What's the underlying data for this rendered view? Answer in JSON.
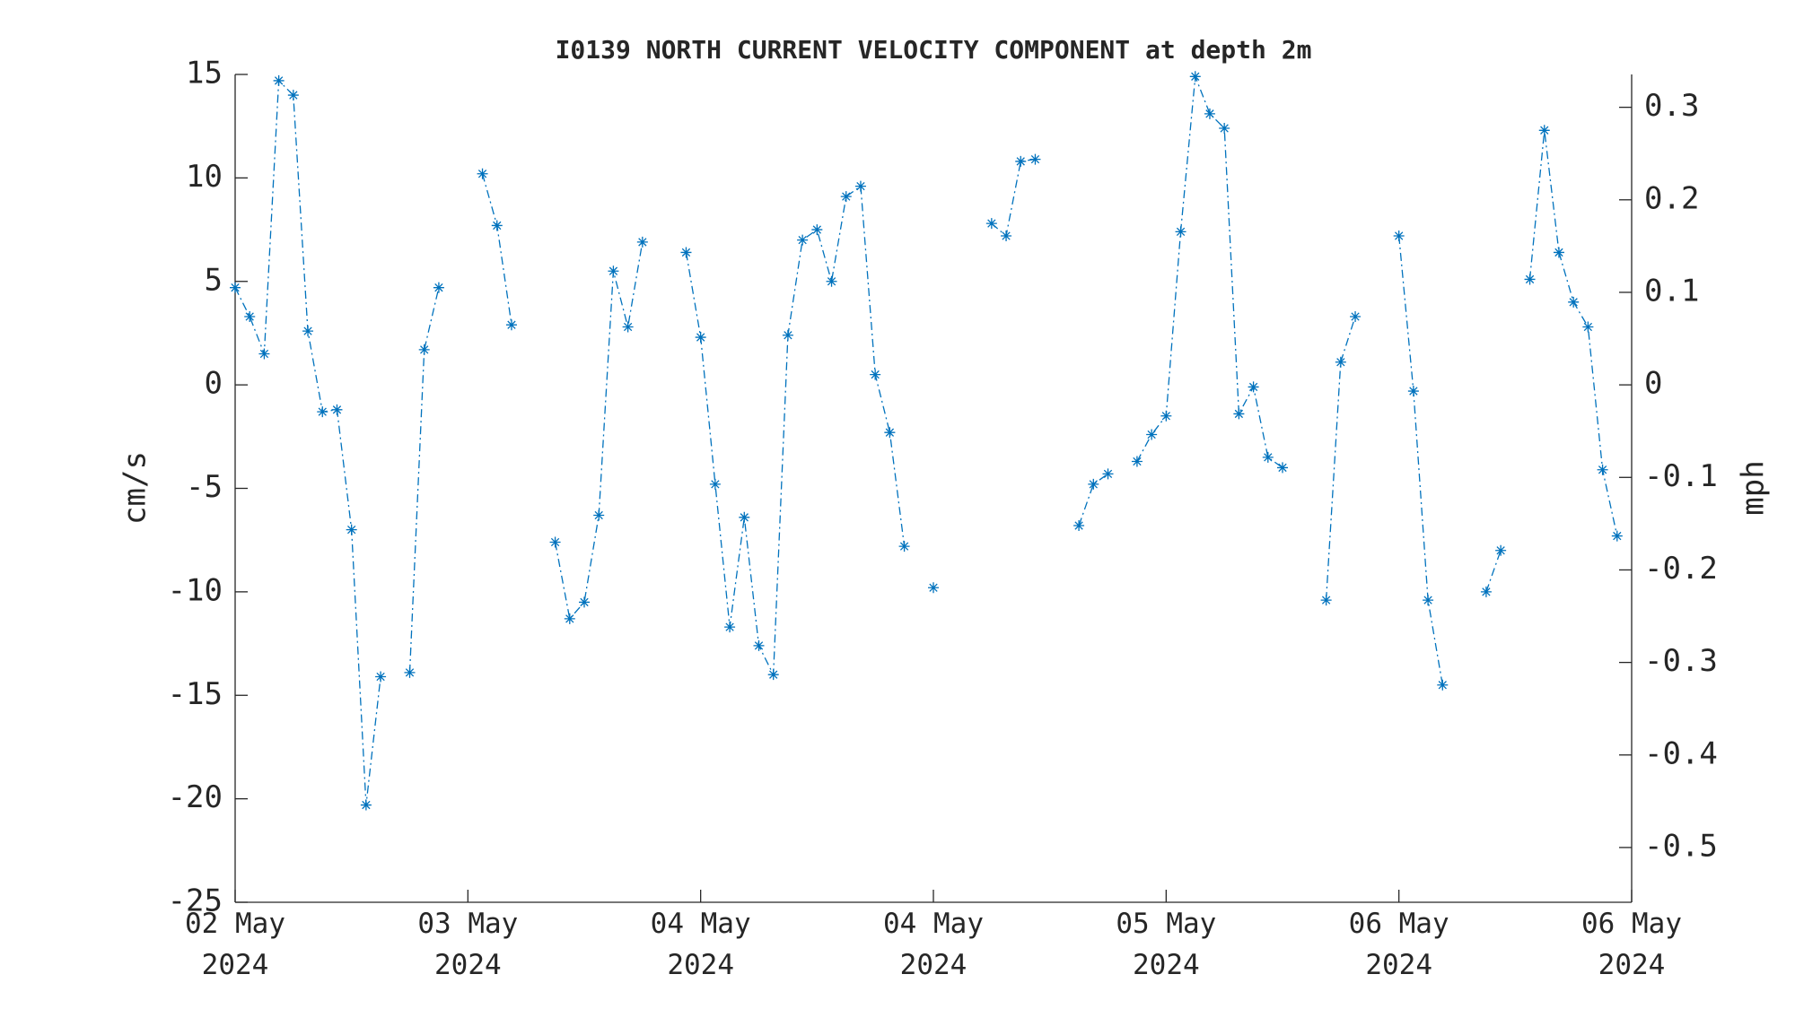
{
  "chart_data": {
    "type": "line",
    "title": "I0139 NORTH CURRENT VELOCITY COMPONENT at depth 2m",
    "y_label": "cm/s",
    "y2_label": "mph",
    "x": [
      0,
      1,
      2,
      3,
      4,
      5,
      6,
      7,
      8,
      9,
      10,
      11,
      12,
      13,
      14,
      15,
      16,
      17,
      18,
      19,
      20,
      21,
      22,
      23,
      24,
      25,
      26,
      27,
      28,
      29,
      30,
      31,
      32,
      33,
      34,
      35,
      36,
      37,
      38,
      39,
      40,
      41,
      42,
      43,
      44,
      45,
      46,
      47,
      48,
      49,
      50,
      51,
      52,
      53,
      54,
      55,
      56,
      57,
      58,
      59,
      60,
      61,
      62,
      63,
      64,
      65,
      66,
      67,
      68,
      69,
      70,
      71,
      72,
      73,
      74,
      75,
      76,
      77,
      78,
      79,
      80,
      81,
      82,
      83,
      84,
      85,
      86,
      87,
      88,
      89,
      90,
      91,
      92,
      93,
      94,
      95
    ],
    "series": [
      {
        "color": "#0072bd",
        "marker": "asterisk",
        "line_style": "dashdot",
        "values": [
          4.7,
          3.3,
          1.5,
          14.7,
          14.0,
          2.6,
          -1.3,
          -1.2,
          -7.0,
          -20.3,
          -14.1,
          null,
          -13.9,
          1.7,
          4.7,
          null,
          null,
          10.2,
          7.7,
          2.9,
          null,
          null,
          -7.6,
          -11.3,
          -10.5,
          -6.3,
          5.5,
          2.8,
          6.9,
          null,
          null,
          6.4,
          2.3,
          -4.8,
          -11.7,
          -6.4,
          -12.6,
          -14.0,
          2.4,
          7.0,
          7.5,
          5.0,
          9.1,
          9.6,
          0.5,
          -2.3,
          -7.8,
          null,
          -9.8,
          null,
          null,
          null,
          7.8,
          7.2,
          10.8,
          10.9,
          null,
          null,
          -6.8,
          -4.8,
          -4.3,
          null,
          -3.7,
          -2.4,
          -1.5,
          7.4,
          14.9,
          13.1,
          12.4,
          -1.4,
          -0.1,
          -3.5,
          -4.0,
          null,
          null,
          -10.4,
          1.1,
          3.3,
          null,
          null,
          7.2,
          -0.3,
          -10.4,
          -14.5,
          null,
          null,
          -10.0,
          -8.0,
          null,
          5.1,
          12.3,
          6.4,
          4.0,
          2.8,
          -4.1,
          -7.3
        ]
      }
    ],
    "xlim": [
      0,
      96
    ],
    "xticks": [
      {
        "value": 0,
        "label": "02 May\n2024"
      },
      {
        "value": 16,
        "label": "03 May\n2024"
      },
      {
        "value": 32,
        "label": "04 May\n2024"
      },
      {
        "value": 48,
        "label": "04 May\n2024"
      },
      {
        "value": 64,
        "label": "05 May\n2024"
      },
      {
        "value": 80,
        "label": "06 May\n2024"
      },
      {
        "value": 96,
        "label": "06 May\n2024"
      }
    ],
    "ylim": [
      -25,
      15
    ],
    "yticks": [
      -25,
      -20,
      -15,
      -10,
      -5,
      0,
      5,
      10,
      15
    ],
    "y2lim": [
      -0.5592,
      0.3355
    ],
    "y2ticks": [
      -0.5,
      -0.4,
      -0.3,
      -0.2,
      -0.1,
      0,
      0.1,
      0.2,
      0.3
    ],
    "grid": false
  }
}
